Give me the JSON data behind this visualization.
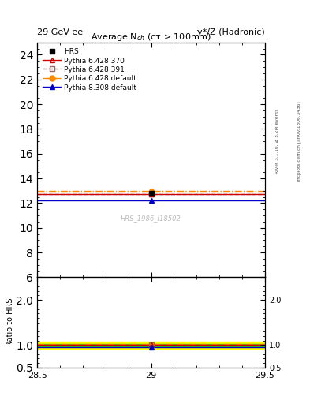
{
  "title_top_left": "29 GeV ee",
  "title_top_right": "γ*/Z (Hadronic)",
  "plot_title": "Average N$_{ch}$ (cτ > 100mm)",
  "y_label_ratio": "Ratio to HRS",
  "xlim": [
    28.5,
    29.5
  ],
  "ylim_main": [
    6,
    25
  ],
  "ylim_ratio": [
    0.5,
    2.5
  ],
  "y_ticks_main": [
    6,
    8,
    10,
    12,
    14,
    16,
    18,
    20,
    22,
    24
  ],
  "y_ticks_ratio": [
    0.5,
    1.0,
    2.0
  ],
  "data_x": 29.0,
  "hrs_y": 12.79,
  "hrs_yerr": 0.12,
  "pythia_628_370_y": 12.76,
  "pythia_628_391_y": 12.76,
  "pythia_628_default_y": 12.98,
  "pythia_838_default_y": 12.23,
  "ratio_628_370": 0.9976,
  "ratio_628_391": 0.9976,
  "ratio_628_default": 1.015,
  "ratio_838_default": 0.956,
  "color_hrs": "#000000",
  "color_628_370": "#cc0000",
  "color_628_391": "#996666",
  "color_628_default": "#ff8800",
  "color_838_default": "#0000cc",
  "watermark": "HRS_1986_I18502",
  "right_label": "Rivet 3.1.10, ≥ 3.2M events",
  "right_label2": "mcplots.cern.ch [arXiv:1306.3436]",
  "ratio_band_color": "#ffff00",
  "ratio_band2_color": "#00cc00",
  "ratio_band_half": 0.08,
  "ratio_band2_half": 0.025
}
